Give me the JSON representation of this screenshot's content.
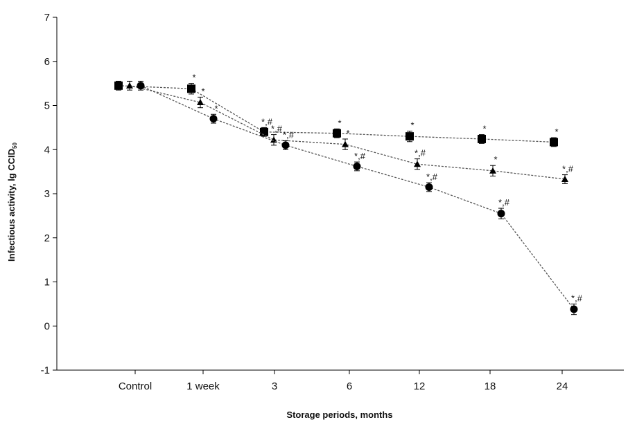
{
  "chart_data": {
    "type": "scatter",
    "xlabel": "Storage periods, months",
    "ylabel": {
      "main": "Infectious activity, lg CCID",
      "subscript": "50"
    },
    "ylim": [
      -1,
      7
    ],
    "yticks": [
      -1,
      0,
      1,
      2,
      3,
      4,
      5,
      6,
      7
    ],
    "categories": [
      "Control",
      "1 week",
      "3",
      "6",
      "12",
      "18",
      "24"
    ],
    "grid": false,
    "legend": "none",
    "series": [
      {
        "marker": "square",
        "values": [
          5.45,
          5.38,
          4.4,
          4.37,
          4.3,
          4.24,
          4.17
        ],
        "errors": [
          0.1,
          0.12,
          0.1,
          0.1,
          0.12,
          0.1,
          0.1
        ],
        "annotations": [
          "",
          "*",
          "*,#",
          "*",
          "*",
          "*",
          "*"
        ]
      },
      {
        "marker": "triangle",
        "values": [
          5.45,
          5.07,
          4.22,
          4.12,
          3.67,
          3.52,
          3.33
        ],
        "errors": [
          0.1,
          0.12,
          0.12,
          0.12,
          0.12,
          0.12,
          0.1
        ],
        "annotations": [
          "",
          "*",
          "*,#",
          "*",
          "*,#",
          "*",
          "*,#"
        ]
      },
      {
        "marker": "circle",
        "values": [
          5.45,
          4.7,
          4.1,
          3.62,
          3.15,
          2.55,
          0.38
        ],
        "errors": [
          0.1,
          0.1,
          0.1,
          0.1,
          0.1,
          0.12,
          0.12
        ],
        "annotations": [
          "",
          "*",
          "*,#",
          "*,#",
          "*,#",
          "*,#",
          "*,#"
        ]
      }
    ]
  }
}
